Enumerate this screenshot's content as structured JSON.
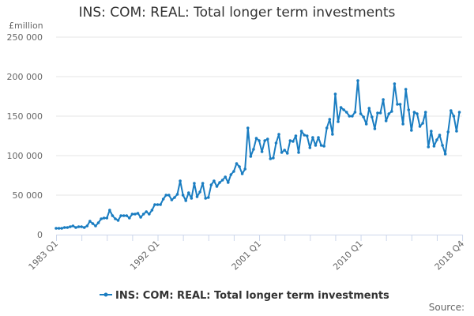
{
  "chart_data": {
    "type": "line",
    "title": "INS: COM: REAL: Total longer term investments",
    "ylabel": "£million",
    "xlabel": "",
    "ylim": [
      0,
      250000
    ],
    "yticks": [
      0,
      50000,
      100000,
      150000,
      200000,
      250000
    ],
    "ytick_labels": [
      "0",
      "50 000",
      "100 000",
      "150 000",
      "200 000",
      "250 000"
    ],
    "x_start": "1983 Q1",
    "x_end": "2018 Q4",
    "x_frequency": "quarterly",
    "xtick_labels": [
      "1983 Q1",
      "1992 Q1",
      "2001 Q1",
      "2010 Q1",
      "2018 Q4"
    ],
    "grid": true,
    "legend_position": "bottom",
    "series": [
      {
        "name": "INS: COM: REAL: Total longer term investments",
        "color": "#1a7dc1",
        "values": [
          8000,
          8000,
          8000,
          9000,
          9000,
          10000,
          11000,
          9000,
          10000,
          10000,
          9000,
          11000,
          17000,
          14000,
          11000,
          15000,
          20000,
          21000,
          21000,
          31000,
          24000,
          20000,
          18000,
          24000,
          24000,
          24000,
          21000,
          26000,
          26000,
          27000,
          22000,
          26000,
          29000,
          26000,
          31000,
          38000,
          38000,
          38000,
          45000,
          50000,
          50000,
          44000,
          47000,
          51000,
          68000,
          50000,
          43000,
          53000,
          46000,
          65000,
          48000,
          54000,
          65000,
          46000,
          47000,
          63000,
          68000,
          61000,
          66000,
          69000,
          73000,
          66000,
          76000,
          80000,
          90000,
          86000,
          77000,
          83000,
          135000,
          99000,
          108000,
          122000,
          119000,
          105000,
          119000,
          121000,
          96000,
          97000,
          116000,
          127000,
          104000,
          107000,
          103000,
          119000,
          118000,
          125000,
          104000,
          131000,
          126000,
          125000,
          110000,
          123000,
          113000,
          123000,
          113000,
          112000,
          135000,
          146000,
          127000,
          178000,
          143000,
          161000,
          158000,
          155000,
          150000,
          150000,
          155000,
          195000,
          153000,
          149000,
          140000,
          160000,
          149000,
          134000,
          154000,
          154000,
          171000,
          144000,
          153000,
          156000,
          191000,
          165000,
          165000,
          140000,
          184000,
          158000,
          132000,
          155000,
          153000,
          137000,
          141000,
          155000,
          111000,
          131000,
          112000,
          120000,
          126000,
          113000,
          102000,
          130000,
          157000,
          150000,
          131000,
          155000
        ]
      }
    ]
  },
  "footer": {
    "source_label": "Source:"
  }
}
